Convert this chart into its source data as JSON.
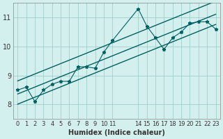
{
  "bg_color": "#d4f0ee",
  "grid_color": "#a0cfc9",
  "line_color": "#006060",
  "marker_color": "#006060",
  "xlabel": "Humidex (Indice chaleur)",
  "ylim": [
    7.5,
    11.5
  ],
  "xlim": [
    -0.5,
    23.5
  ],
  "yticks": [
    8,
    9,
    10,
    11
  ],
  "xticks": [
    0,
    1,
    2,
    3,
    4,
    5,
    6,
    7,
    8,
    9,
    10,
    11,
    14,
    15,
    16,
    17,
    18,
    19,
    20,
    21,
    22,
    23
  ],
  "scatter_x": [
    0,
    1,
    2,
    3,
    4,
    5,
    6,
    7,
    8,
    9,
    10,
    11,
    14,
    15,
    16,
    17,
    18,
    19,
    20,
    21,
    22,
    23
  ],
  "scatter_y": [
    8.5,
    8.6,
    8.1,
    8.5,
    8.7,
    8.8,
    8.8,
    9.3,
    9.3,
    9.25,
    9.8,
    10.2,
    11.3,
    10.7,
    10.3,
    9.9,
    10.3,
    10.5,
    10.8,
    10.85,
    10.85,
    10.6
  ],
  "figsize": [
    3.2,
    2.0
  ],
  "dpi": 100
}
